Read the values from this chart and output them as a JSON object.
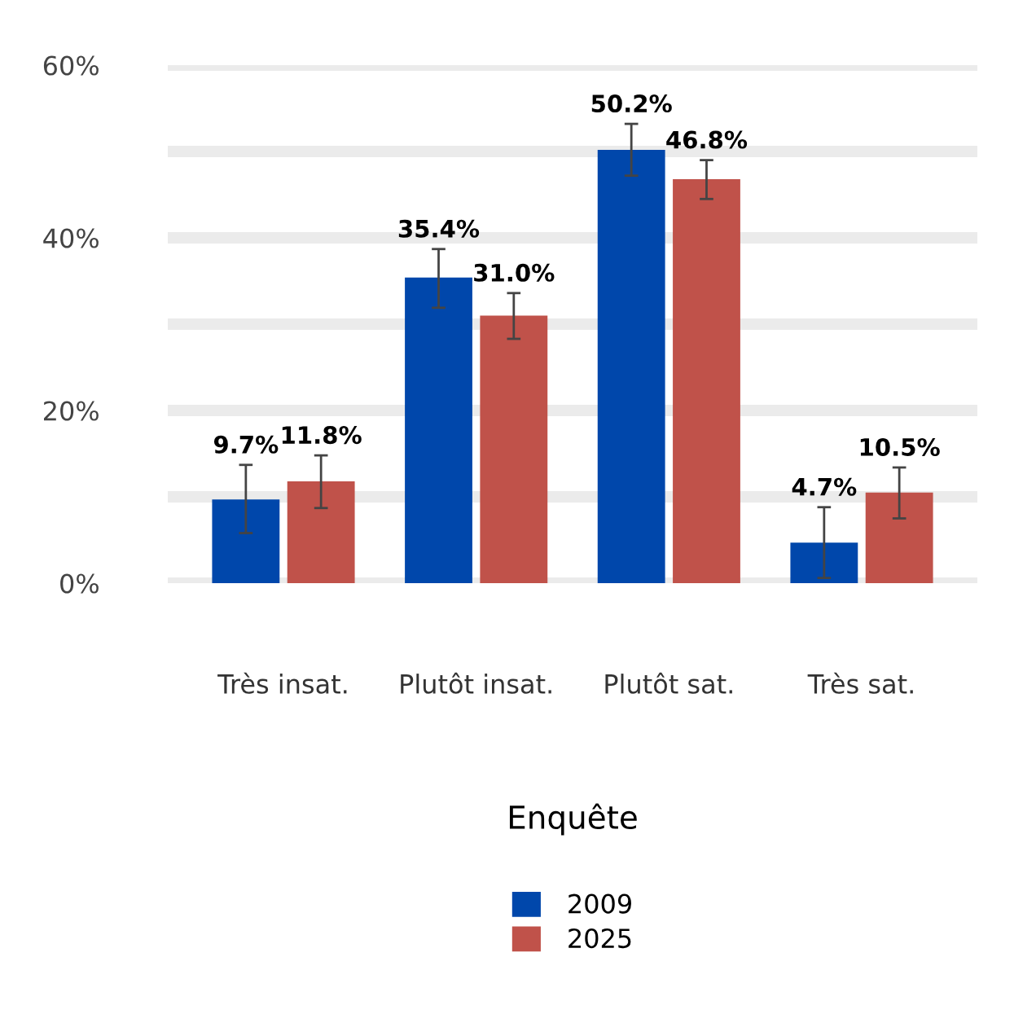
{
  "chart_data": {
    "type": "bar",
    "categories": [
      "Très insat.",
      "Plutôt insat.",
      "Plutôt sat.",
      "Très sat."
    ],
    "series": [
      {
        "name": "2009",
        "color": "#0047ab",
        "values": [
          9.7,
          35.4,
          50.2,
          4.7
        ],
        "errors": [
          [
            5.8,
            13.7
          ],
          [
            31.9,
            38.7
          ],
          [
            47.2,
            53.2
          ],
          [
            0.6,
            8.8
          ]
        ],
        "value_labels": [
          "9.7%",
          "35.4%",
          "50.2%",
          "4.7%"
        ]
      },
      {
        "name": "2025",
        "color": "#c0524a",
        "values": [
          11.8,
          31.0,
          46.8,
          10.5
        ],
        "errors": [
          [
            8.7,
            14.8
          ],
          [
            28.3,
            33.6
          ],
          [
            44.5,
            49.0
          ],
          [
            7.5,
            13.4
          ]
        ],
        "value_labels": [
          "11.8%",
          "31.0%",
          "46.8%",
          "10.5%"
        ]
      }
    ],
    "legend_title": "Enquête",
    "legend": "bottom",
    "ylim": [
      0,
      60
    ],
    "yticks": [
      {
        "value": 0,
        "label": "0%"
      },
      {
        "value": 10,
        "label": null
      },
      {
        "value": 20,
        "label": "20%"
      },
      {
        "value": 30,
        "label": null
      },
      {
        "value": 40,
        "label": "40%"
      },
      {
        "value": 50,
        "label": null
      },
      {
        "value": 60,
        "label": "60%"
      }
    ],
    "grid": "y"
  }
}
